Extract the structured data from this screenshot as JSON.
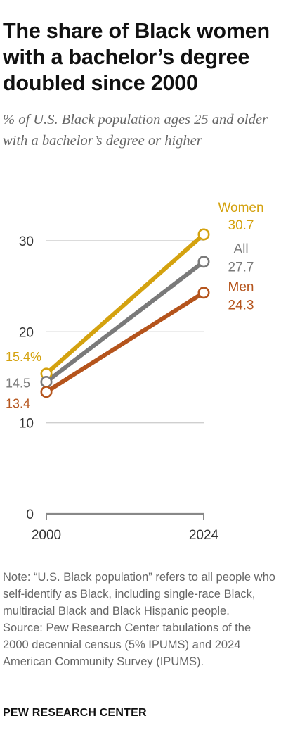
{
  "header": {
    "title": "The share of Black women with a bachelor’s degree doubled since 2000",
    "subtitle": "% of U.S. Black population ages 25 and older with a bachelor’s degree or higher"
  },
  "chart_data": {
    "type": "line",
    "title": "The share of Black women with a bachelor’s degree doubled since 2000",
    "subtitle": "% of U.S. Black population ages 25 and older with a bachelor’s degree or higher",
    "xlabel": "",
    "ylabel": "",
    "x": [
      "2000",
      "2024"
    ],
    "yticks": [
      "0",
      "10",
      "20",
      "30"
    ],
    "ylim": [
      0,
      30
    ],
    "grid": true,
    "legend": "direct labels at line ends",
    "series": [
      {
        "name": "Women",
        "values": [
          15.4,
          30.7
        ],
        "start_label": "15.4%",
        "end_label": "30.7",
        "color": "#d4a20f"
      },
      {
        "name": "All",
        "values": [
          14.5,
          27.7
        ],
        "start_label": "14.5",
        "end_label": "27.7",
        "color": "#7a7a7a"
      },
      {
        "name": "Men",
        "values": [
          13.4,
          24.3
        ],
        "start_label": "13.4",
        "end_label": "24.3",
        "color": "#b5541c"
      }
    ]
  },
  "footer": {
    "note": "Note: “U.S. Black population” refers to all people who self-identify as Black, including single-race Black, multiracial Black and Black Hispanic people.",
    "source": "Source: Pew Research Center tabulations of the 2000 decennial census (5% IPUMS) and 2024 American Community Survey (IPUMS).",
    "brand": "PEW RESEARCH CENTER"
  }
}
